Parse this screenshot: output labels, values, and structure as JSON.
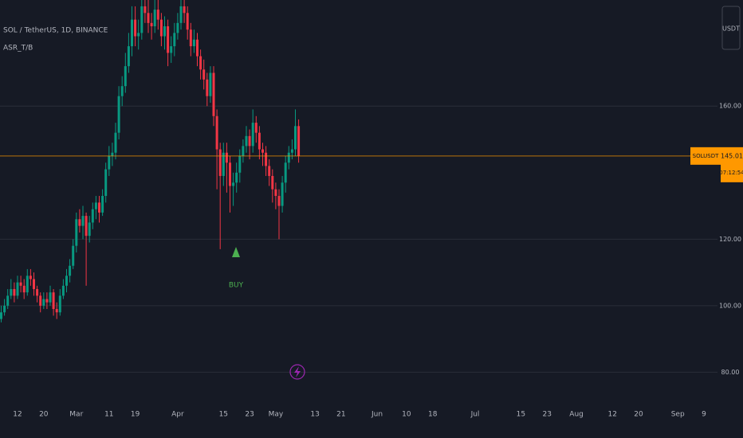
{
  "chart_data": {
    "type": "candlestick",
    "title": "SOL / TetherUS, 1D, BINANCE",
    "indicator": "ASR_T/B",
    "currency": "USDT",
    "up_color": "#089981",
    "down_color": "#f23645",
    "grid": true,
    "ylim": [
      71,
      191.9
    ],
    "yticks": [
      {
        "value": 80,
        "label": "80.00"
      },
      {
        "value": 100,
        "label": "100.00"
      },
      {
        "value": 120,
        "label": "120.00"
      },
      {
        "value": 160,
        "label": "160.00"
      }
    ],
    "last_price": {
      "symbol": "SOLUSDT",
      "value": 145.01,
      "countdown": "07:12:54",
      "color": "#ff9800"
    },
    "signal": {
      "text": "BUY",
      "color": "#4caf50"
    },
    "categories": [
      null,
      null,
      null,
      null,
      null,
      "12",
      null,
      null,
      null,
      null,
      null,
      null,
      null,
      "20",
      null,
      null,
      null,
      null,
      null,
      null,
      null,
      null,
      null,
      "Mar",
      null,
      null,
      null,
      null,
      null,
      null,
      null,
      null,
      null,
      "11",
      null,
      null,
      null,
      null,
      null,
      null,
      null,
      "19",
      null,
      null,
      null,
      null,
      null,
      null,
      null,
      null,
      null,
      null,
      null,
      null,
      "Apr",
      null,
      null,
      null,
      null,
      null,
      null,
      null,
      null,
      null,
      null,
      null,
      null,
      null,
      "15",
      null,
      null,
      null,
      null,
      null,
      null,
      null,
      "23",
      null,
      null,
      null,
      null,
      null,
      null,
      null,
      "May",
      null,
      null,
      null,
      null,
      null,
      null,
      null,
      null,
      null,
      null,
      null,
      "13",
      null,
      null,
      null,
      null,
      null,
      null,
      null,
      "21",
      null,
      null,
      null,
      null,
      null,
      null,
      null,
      null,
      null,
      null,
      "Jun",
      null,
      null,
      null,
      null,
      null,
      null,
      null,
      null,
      "10",
      null,
      null,
      null,
      null,
      null,
      null,
      null,
      "18",
      null,
      null,
      null,
      null,
      null,
      null,
      null,
      null,
      null,
      null,
      null,
      null,
      "Jul",
      null,
      null,
      null,
      null,
      null,
      null,
      null,
      null,
      null,
      null,
      null,
      null,
      null,
      "15",
      null,
      null,
      null,
      null,
      null,
      null,
      null,
      "23",
      null,
      null,
      null,
      null,
      null,
      null,
      null,
      null,
      "Aug",
      null,
      null,
      null,
      null,
      null,
      null,
      null,
      null,
      null,
      null,
      "12",
      null,
      null,
      null,
      null,
      null,
      null,
      null,
      "20",
      null,
      null,
      null,
      null,
      null,
      null,
      null,
      null,
      null,
      null,
      null,
      "Sep",
      null,
      null,
      null,
      null,
      null,
      null,
      null,
      "9"
    ],
    "open": [
      96,
      98,
      100,
      103,
      105,
      103,
      107,
      106,
      104,
      109,
      108,
      105,
      103,
      100,
      102,
      101,
      104,
      99,
      98,
      103,
      106,
      109,
      112,
      118,
      126,
      124,
      127,
      121,
      125,
      129,
      131,
      128,
      133,
      141,
      145,
      146,
      152,
      163,
      166,
      172,
      178,
      186,
      181,
      182,
      190,
      188,
      185,
      184,
      189,
      186,
      181,
      184,
      176,
      178,
      182,
      185,
      190,
      188,
      183,
      178,
      180,
      175,
      171,
      168,
      163,
      170,
      157,
      147,
      139,
      146,
      143,
      136,
      137,
      140,
      145,
      148,
      151,
      148,
      155,
      152,
      147,
      146,
      142,
      139,
      135,
      133,
      130,
      137,
      143,
      146,
      147,
      154,
      null,
      null,
      null,
      null,
      null,
      null,
      null,
      null,
      null,
      null,
      null,
      null,
      null,
      null,
      null,
      null,
      null,
      null,
      null,
      null,
      null,
      null,
      null,
      null,
      null,
      null,
      null,
      null,
      null,
      null,
      null,
      null,
      null,
      null,
      null,
      null,
      null,
      null,
      null,
      null,
      null,
      null,
      null,
      null,
      null,
      null,
      null,
      null,
      null,
      null,
      null,
      null,
      null,
      null,
      null,
      null,
      null,
      null,
      null,
      null,
      null,
      null,
      null,
      null,
      null,
      null,
      null,
      null,
      null,
      null,
      null,
      null,
      null,
      null,
      null,
      null,
      null,
      null,
      null,
      null,
      null,
      null,
      null,
      null,
      null,
      null,
      null,
      null,
      null,
      null,
      null,
      null,
      null,
      null,
      null,
      null,
      null,
      null,
      null,
      null,
      null,
      null,
      null,
      null,
      null,
      null,
      null,
      null,
      null,
      null,
      null,
      null,
      null,
      null,
      null,
      null,
      null,
      null,
      null,
      null,
      null,
      null,
      null,
      null
    ],
    "high": [
      100,
      102,
      105,
      108,
      107,
      109,
      109,
      108,
      111,
      111,
      110,
      106,
      104,
      104,
      104,
      106,
      105,
      101,
      105,
      108,
      111,
      114,
      120,
      128,
      129,
      130,
      128,
      127,
      131,
      133,
      133,
      135,
      143,
      148,
      149,
      155,
      166,
      169,
      176,
      182,
      190,
      190,
      186,
      194,
      194,
      192,
      188,
      193,
      192,
      188,
      187,
      186,
      181,
      185,
      188,
      194,
      194,
      190,
      185,
      183,
      182,
      177,
      174,
      170,
      172,
      172,
      159,
      149,
      149,
      149,
      145,
      140,
      143,
      147,
      150,
      154,
      153,
      159,
      157,
      154,
      149,
      148,
      144,
      141,
      137,
      135,
      139,
      145,
      148,
      150,
      159,
      156,
      null,
      null,
      null,
      null,
      null,
      null,
      null,
      null,
      null,
      null,
      null,
      null,
      null,
      null,
      null,
      null,
      null,
      null,
      null,
      null,
      null,
      null,
      null,
      null,
      null,
      null,
      null,
      null,
      null,
      null,
      null,
      null,
      null,
      null,
      null,
      null,
      null,
      null,
      null,
      null,
      null,
      null,
      null,
      null,
      null,
      null,
      null,
      null,
      null,
      null,
      null,
      null,
      null,
      null,
      null,
      null,
      null,
      null,
      null,
      null,
      null,
      null,
      null,
      null,
      null,
      null,
      null,
      null,
      null,
      null,
      null,
      null,
      null,
      null,
      null,
      null,
      null,
      null,
      null,
      null,
      null,
      null,
      null,
      null,
      null,
      null,
      null,
      null,
      null,
      null,
      null,
      null,
      null,
      null,
      null,
      null,
      null,
      null,
      null,
      null,
      null,
      null,
      null,
      null,
      null,
      null,
      null,
      null,
      null,
      null,
      null,
      null,
      null,
      null,
      null,
      null,
      null,
      null,
      null,
      null,
      null,
      null,
      null,
      null
    ],
    "low": [
      95,
      97,
      99,
      102,
      101,
      102,
      104,
      102,
      103,
      106,
      103,
      101,
      98,
      99,
      99,
      100,
      97,
      96,
      97,
      102,
      104,
      107,
      111,
      116,
      122,
      120,
      106,
      119,
      123,
      126,
      125,
      127,
      131,
      139,
      142,
      144,
      150,
      160,
      164,
      170,
      175,
      178,
      177,
      180,
      185,
      182,
      180,
      182,
      183,
      178,
      177,
      172,
      173,
      175,
      180,
      183,
      185,
      180,
      175,
      176,
      172,
      168,
      165,
      160,
      161,
      154,
      135,
      117,
      136,
      134,
      128,
      130,
      134,
      137,
      143,
      146,
      144,
      146,
      149,
      144,
      142,
      139,
      136,
      131,
      129,
      120,
      128,
      134,
      141,
      144,
      145,
      143,
      null,
      null,
      null,
      null,
      null,
      null,
      null,
      null,
      null,
      null,
      null,
      null,
      null,
      null,
      null,
      null,
      null,
      null,
      null,
      null,
      null,
      null,
      null,
      null,
      null,
      null,
      null,
      null,
      null,
      null,
      null,
      null,
      null,
      null,
      null,
      null,
      null,
      null,
      null,
      null,
      null,
      null,
      null,
      null,
      null,
      null,
      null,
      null,
      null,
      null,
      null,
      null,
      null,
      null,
      null,
      null,
      null,
      null,
      null,
      null,
      null,
      null,
      null,
      null,
      null,
      null,
      null,
      null,
      null,
      null,
      null,
      null,
      null,
      null,
      null,
      null,
      null,
      null,
      null,
      null,
      null,
      null,
      null,
      null,
      null,
      null,
      null,
      null,
      null,
      null,
      null,
      null,
      null,
      null,
      null,
      null,
      null,
      null,
      null,
      null,
      null,
      null,
      null,
      null,
      null,
      null,
      null,
      null,
      null,
      null,
      null,
      null,
      null,
      null,
      null,
      null,
      null,
      null,
      null,
      null,
      null,
      null,
      null,
      null
    ],
    "close": [
      98,
      100,
      103,
      105,
      103,
      107,
      106,
      104,
      109,
      108,
      105,
      103,
      100,
      102,
      101,
      104,
      99,
      98,
      103,
      106,
      109,
      112,
      118,
      126,
      124,
      127,
      121,
      125,
      129,
      131,
      128,
      133,
      141,
      145,
      146,
      152,
      163,
      166,
      172,
      178,
      186,
      181,
      182,
      190,
      188,
      185,
      184,
      189,
      186,
      181,
      184,
      176,
      178,
      182,
      185,
      190,
      188,
      183,
      178,
      180,
      175,
      171,
      168,
      163,
      170,
      157,
      147,
      139,
      146,
      143,
      136,
      137,
      140,
      145,
      148,
      151,
      148,
      155,
      152,
      147,
      146,
      142,
      139,
      135,
      133,
      130,
      137,
      143,
      146,
      147,
      154,
      145,
      null,
      null,
      null,
      null,
      null,
      null,
      null,
      null,
      null,
      null,
      null,
      null,
      null,
      null,
      null,
      null,
      null,
      null,
      null,
      null,
      null,
      null,
      null,
      null,
      null,
      null,
      null,
      null,
      null,
      null,
      null,
      null,
      null,
      null,
      null,
      null,
      null,
      null,
      null,
      null,
      null,
      null,
      null,
      null,
      null,
      null,
      null,
      null,
      null,
      null,
      null,
      null,
      null,
      null,
      null,
      null,
      null,
      null,
      null,
      null,
      null,
      null,
      null,
      null,
      null,
      null,
      null,
      null,
      null,
      null,
      null,
      null,
      null,
      null,
      null,
      null,
      null,
      null,
      null,
      null,
      null,
      null,
      null,
      null,
      null,
      null,
      null,
      null,
      null,
      null,
      null,
      null,
      null,
      null,
      null,
      null,
      null,
      null,
      null,
      null,
      null,
      null,
      null,
      null,
      null,
      null,
      null,
      null,
      null,
      null,
      null,
      null,
      null,
      null,
      null,
      null,
      null,
      null,
      null,
      null,
      null,
      null,
      null,
      null
    ]
  }
}
